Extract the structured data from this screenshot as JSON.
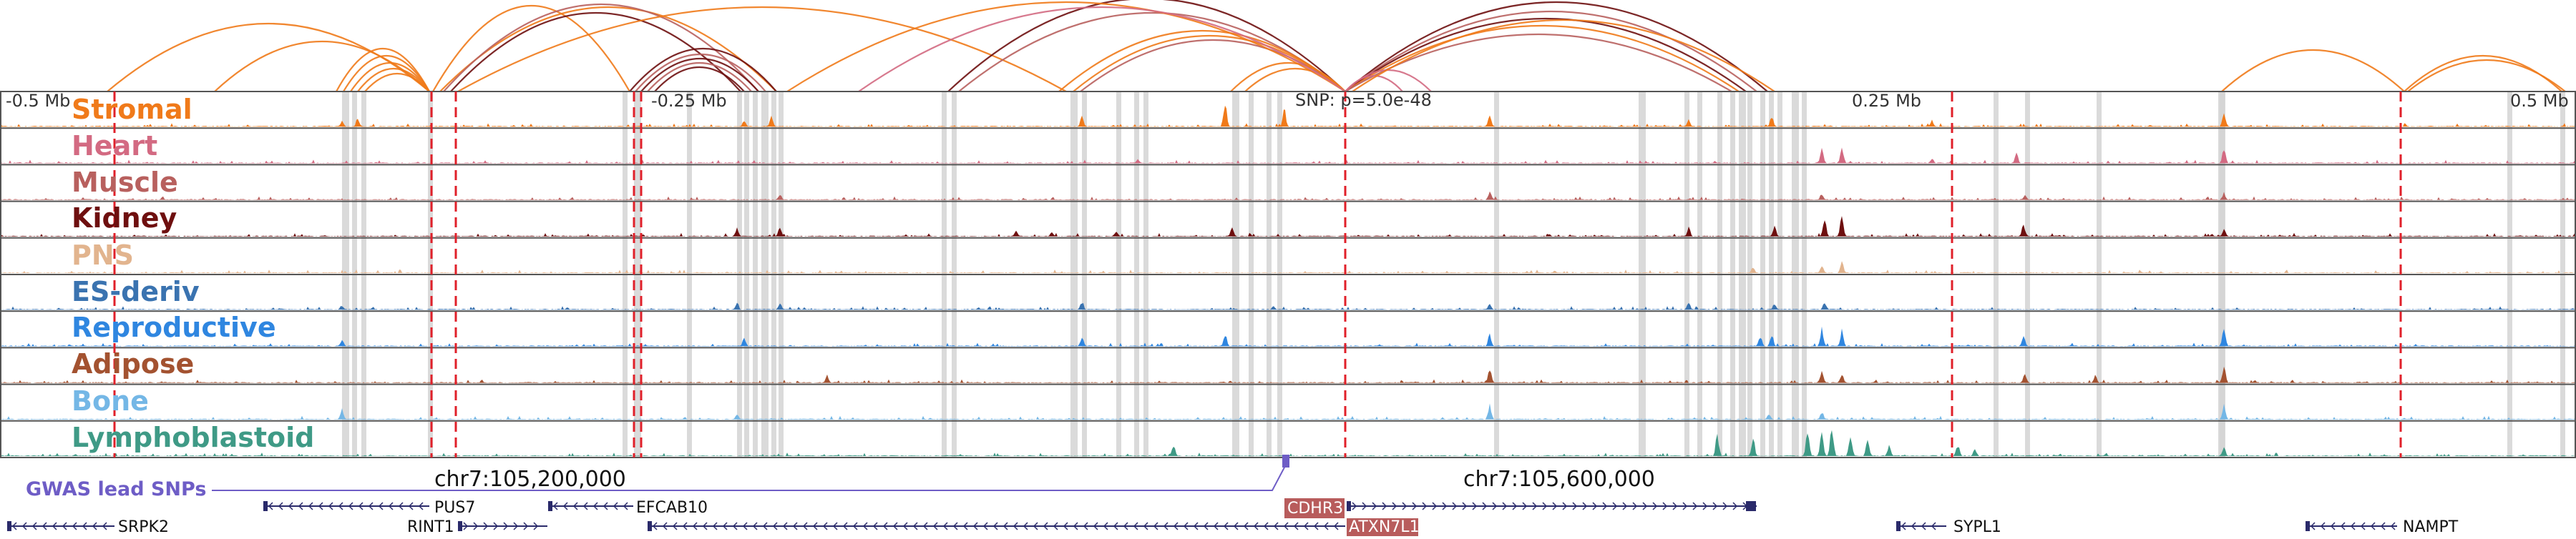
{
  "axis": {
    "ticks": [
      "-0.5 Mb",
      "-0.25 Mb",
      "0.25 Mb",
      "0.5 Mb"
    ],
    "snp_label": "SNP: p=5.0e-48"
  },
  "tracks": [
    {
      "name": "Stromal",
      "color": "#f07a1a"
    },
    {
      "name": "Heart",
      "color": "#d36a82"
    },
    {
      "name": "Muscle",
      "color": "#b8605e"
    },
    {
      "name": "Kidney",
      "color": "#6e0f0f"
    },
    {
      "name": "PNS",
      "color": "#e2b48e"
    },
    {
      "name": "ES-deriv",
      "color": "#3a73b0"
    },
    {
      "name": "Reproductive",
      "color": "#2f86e0"
    },
    {
      "name": "Adipose",
      "color": "#a35230"
    },
    {
      "name": "Bone",
      "color": "#74b7e6"
    },
    {
      "name": "Lymphoblastoid",
      "color": "#3f9a86"
    }
  ],
  "gwas": {
    "label": "GWAS lead SNPs",
    "color": "#6e5dc6"
  },
  "coords": [
    "chr7:105,200,000",
    "chr7:105,600,000"
  ],
  "genes": [
    {
      "name": "PUS7",
      "highlight": false
    },
    {
      "name": "EFCAB10",
      "highlight": false
    },
    {
      "name": "CDHR3",
      "highlight": true
    },
    {
      "name": "SRPK2",
      "highlight": false
    },
    {
      "name": "RINT1",
      "highlight": false
    },
    {
      "name": "ATXN7L1",
      "highlight": true
    },
    {
      "name": "SYPL1",
      "highlight": false
    },
    {
      "name": "NAMPT",
      "highlight": false
    }
  ],
  "colors": {
    "red_dash": "#e0202a",
    "grey_band": "#d4d4d4",
    "gene_highlight": "#b85c5c"
  }
}
